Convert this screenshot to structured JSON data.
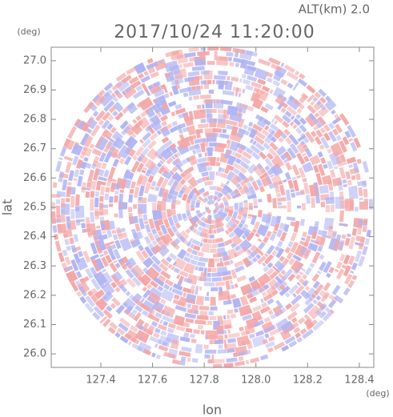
{
  "chart_data": {
    "type": "radar-field",
    "title": "2017/10/24 11:20:00",
    "subtitle": "ALT(km) 2.0",
    "x_label": "lon",
    "y_label": "lat",
    "x_unit": "(deg)",
    "y_unit": "(deg)",
    "xlim": [
      127.208,
      128.456
    ],
    "ylim": [
      25.954,
      27.046
    ],
    "xticks": [
      127.4,
      127.6,
      127.8,
      {
        "value": 128.0,
        "label": "128.0"
      },
      128.2,
      128.4
    ],
    "yticks": [
      {
        "value": 26.0,
        "label": "26.0"
      },
      26.1,
      26.2,
      26.3,
      26.4,
      26.5,
      26.6,
      26.7,
      26.8,
      26.9,
      {
        "value": 27.0,
        "label": "27.0"
      }
    ],
    "colors": [
      "#f4a6a6",
      "#b0b4f2"
    ]
  }
}
